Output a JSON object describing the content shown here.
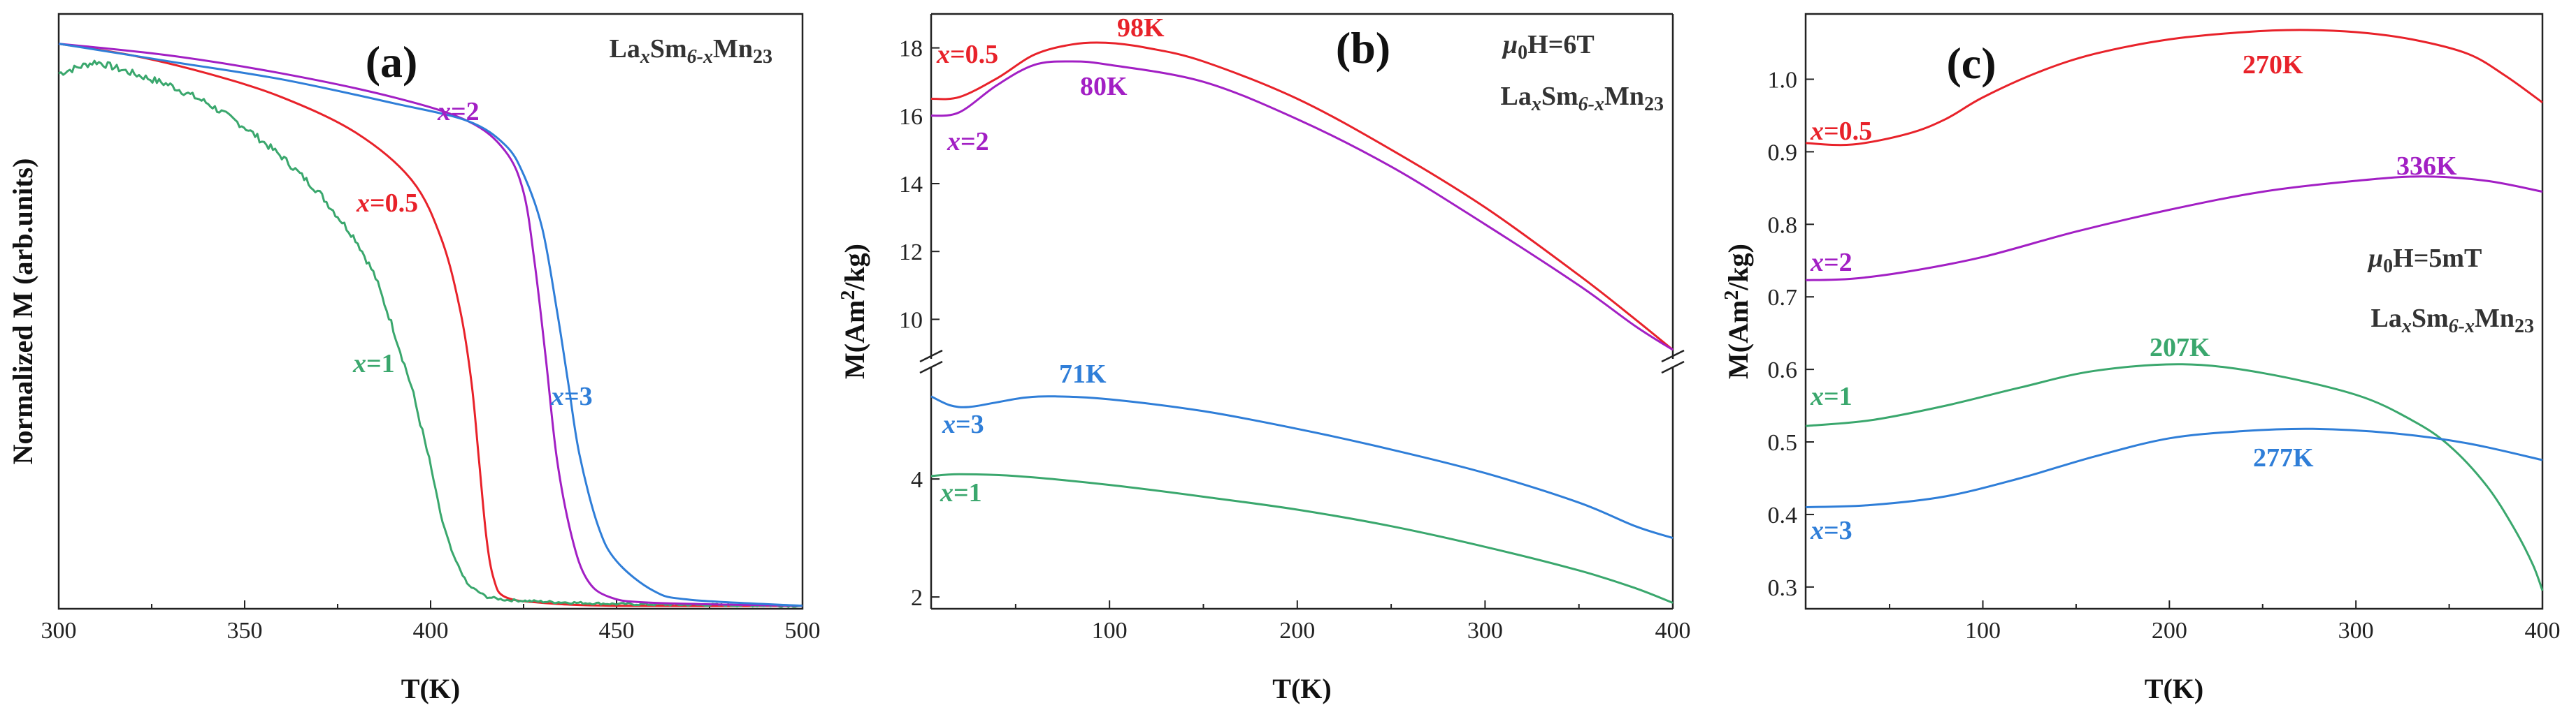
{
  "chart_data": [
    {
      "id": "a",
      "type": "line",
      "panel_label": "(a)",
      "xlabel": "T(K)",
      "ylabel": "Normalized M (arb.units)",
      "xlim": [
        300,
        500
      ],
      "ylim": [
        0,
        1.0
      ],
      "xticks": [
        300,
        350,
        400,
        450,
        500
      ],
      "info": {
        "base": "La",
        "s1": "x",
        "mid": "Sm",
        "s2": "6-x",
        "end": "Mn",
        "s3": "23"
      },
      "series": [
        {
          "name": "x=0.5",
          "label_pre": "x",
          "label_post": "=0.5",
          "color": "#e8222a",
          "x": [
            300,
            320,
            340,
            360,
            380,
            395,
            403,
            408,
            411,
            413,
            415,
            417,
            420,
            430,
            450,
            500
          ],
          "y": [
            0.95,
            0.93,
            0.9,
            0.86,
            0.8,
            0.72,
            0.62,
            0.5,
            0.38,
            0.25,
            0.12,
            0.05,
            0.02,
            0.01,
            0.005,
            0.005
          ]
        },
        {
          "name": "x=1",
          "label_pre": "x",
          "label_post": "=1",
          "color": "#3aa76d",
          "x": [
            300,
            305,
            310,
            320,
            330,
            340,
            350,
            360,
            370,
            380,
            385,
            390,
            395,
            400,
            403,
            406,
            410,
            415,
            420,
            430,
            450,
            500
          ],
          "y": [
            0.9,
            0.91,
            0.92,
            0.9,
            0.88,
            0.85,
            0.81,
            0.76,
            0.7,
            0.62,
            0.56,
            0.47,
            0.37,
            0.24,
            0.15,
            0.09,
            0.04,
            0.02,
            0.015,
            0.012,
            0.008,
            0.005
          ]
        },
        {
          "name": "x=2",
          "label_pre": "x",
          "label_post": "=2",
          "color": "#a21fc4",
          "x": [
            300,
            330,
            360,
            390,
            410,
            420,
            425,
            428,
            431,
            434,
            438,
            442,
            448,
            460,
            500
          ],
          "y": [
            0.95,
            0.93,
            0.9,
            0.86,
            0.82,
            0.77,
            0.7,
            0.58,
            0.42,
            0.25,
            0.12,
            0.05,
            0.02,
            0.01,
            0.005
          ]
        },
        {
          "name": "x=3",
          "label_pre": "x",
          "label_post": "=3",
          "color": "#2f7ed8",
          "x": [
            300,
            330,
            360,
            390,
            410,
            420,
            425,
            430,
            434,
            437,
            440,
            445,
            450,
            460,
            470,
            500
          ],
          "y": [
            0.95,
            0.92,
            0.89,
            0.85,
            0.82,
            0.78,
            0.73,
            0.64,
            0.5,
            0.38,
            0.26,
            0.14,
            0.08,
            0.03,
            0.015,
            0.005
          ]
        }
      ]
    },
    {
      "id": "b",
      "type": "line",
      "panel_label": "(b)",
      "xlabel": "T(K)",
      "ylabel": "M(Am²/kg)",
      "xlim": [
        5,
        400
      ],
      "axis_break": true,
      "lower_ylim": [
        1.8,
        5.8
      ],
      "upper_ylim": [
        9,
        19
      ],
      "lower_yticks": [
        2,
        4
      ],
      "upper_yticks": [
        10,
        12,
        14,
        16,
        18
      ],
      "xticks": [
        100,
        200,
        300,
        400
      ],
      "field_label": "μ0H=6T",
      "info": {
        "base": "La",
        "s1": "x",
        "mid": "Sm",
        "s2": "6-x",
        "end": "Mn",
        "s3": "23"
      },
      "series": [
        {
          "name": "x=0.5",
          "label_pre": "x",
          "label_post": "=0.5",
          "color": "#e8222a",
          "segment": "upper",
          "peak": "98K",
          "x": [
            5,
            20,
            40,
            60,
            80,
            98,
            120,
            150,
            200,
            250,
            300,
            350,
            380,
            400
          ],
          "y": [
            16.5,
            16.55,
            17.1,
            17.8,
            18.1,
            18.15,
            18.0,
            17.6,
            16.5,
            15.0,
            13.3,
            11.3,
            10.0,
            9.1
          ]
        },
        {
          "name": "x=2",
          "label_pre": "x",
          "label_post": "=2",
          "color": "#a21fc4",
          "segment": "upper",
          "peak": "80K",
          "x": [
            5,
            20,
            40,
            60,
            80,
            100,
            150,
            200,
            250,
            300,
            350,
            380,
            400
          ],
          "y": [
            16.0,
            16.1,
            16.9,
            17.5,
            17.6,
            17.5,
            17.0,
            15.9,
            14.5,
            12.8,
            11.0,
            9.8,
            9.1
          ]
        },
        {
          "name": "x=3",
          "label_pre": "x",
          "label_post": "=3",
          "color": "#2f7ed8",
          "segment": "lower",
          "peak": "71K",
          "x": [
            5,
            15,
            25,
            40,
            55,
            71,
            100,
            150,
            200,
            250,
            300,
            350,
            380,
            400
          ],
          "y": [
            5.4,
            5.25,
            5.22,
            5.3,
            5.38,
            5.4,
            5.35,
            5.15,
            4.85,
            4.5,
            4.1,
            3.6,
            3.2,
            3.0
          ]
        },
        {
          "name": "x=1",
          "label_pre": "x",
          "label_post": "=1",
          "color": "#3aa76d",
          "segment": "lower",
          "x": [
            5,
            20,
            50,
            100,
            150,
            200,
            250,
            300,
            350,
            380,
            400
          ],
          "y": [
            4.05,
            4.08,
            4.05,
            3.9,
            3.7,
            3.48,
            3.2,
            2.85,
            2.45,
            2.15,
            1.9
          ]
        }
      ]
    },
    {
      "id": "c",
      "type": "line",
      "panel_label": "(c)",
      "xlabel": "T(K)",
      "ylabel": "M(Am²/kg)",
      "xlim": [
        5,
        400
      ],
      "ylim": [
        0.27,
        1.09
      ],
      "xticks": [
        100,
        200,
        300,
        400
      ],
      "yticks": [
        0.3,
        0.4,
        0.5,
        0.6,
        0.7,
        0.8,
        0.9,
        1.0
      ],
      "field_label": "μ0H=5mT",
      "info": {
        "base": "La",
        "s1": "x",
        "mid": "Sm",
        "s2": "6-x",
        "end": "Mn",
        "s3": "23"
      },
      "series": [
        {
          "name": "x=0.5",
          "label_pre": "x",
          "label_post": "=0.5",
          "color": "#e8222a",
          "peak": "270K",
          "x": [
            5,
            30,
            60,
            80,
            100,
            130,
            160,
            200,
            240,
            270,
            300,
            330,
            360,
            380,
            400
          ],
          "y": [
            0.912,
            0.91,
            0.925,
            0.945,
            0.975,
            1.01,
            1.035,
            1.055,
            1.065,
            1.068,
            1.065,
            1.055,
            1.035,
            1.005,
            0.968
          ]
        },
        {
          "name": "x=2",
          "label_pre": "x",
          "label_post": "=2",
          "color": "#a21fc4",
          "peak": "336K",
          "x": [
            5,
            30,
            60,
            100,
            150,
            200,
            250,
            300,
            336,
            370,
            400
          ],
          "y": [
            0.723,
            0.725,
            0.735,
            0.755,
            0.79,
            0.82,
            0.845,
            0.86,
            0.866,
            0.86,
            0.845
          ]
        },
        {
          "name": "x=1",
          "label_pre": "x",
          "label_post": "=1",
          "color": "#3aa76d",
          "peak": "207K",
          "x": [
            5,
            40,
            80,
            120,
            160,
            207,
            250,
            300,
            330,
            350,
            370,
            385,
            395,
            400
          ],
          "y": [
            0.522,
            0.53,
            0.55,
            0.575,
            0.598,
            0.607,
            0.595,
            0.565,
            0.53,
            0.495,
            0.44,
            0.38,
            0.33,
            0.295
          ]
        },
        {
          "name": "x=3",
          "label_pre": "x",
          "label_post": "=3",
          "color": "#2f7ed8",
          "peak": "277K",
          "x": [
            5,
            40,
            80,
            120,
            160,
            200,
            240,
            277,
            320,
            360,
            400
          ],
          "y": [
            0.41,
            0.413,
            0.425,
            0.45,
            0.48,
            0.505,
            0.515,
            0.518,
            0.512,
            0.498,
            0.475
          ]
        }
      ]
    }
  ]
}
